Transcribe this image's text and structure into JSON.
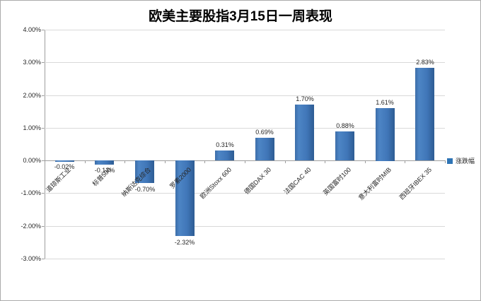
{
  "chart_data": {
    "type": "bar",
    "title": "欧美主要股指3月15日一周表现",
    "categories": [
      "道琼斯工业",
      "标普500",
      "纳斯达克综合",
      "罗素2000",
      "欧洲Stoxx 600",
      "德国DAX 30",
      "法国CAC 40",
      "英国富时100",
      "意大利富时MIB",
      "西班牙IBEX 35"
    ],
    "series": [
      {
        "name": "涨跌幅",
        "values": [
          -0.02,
          -0.13,
          -0.7,
          -2.32,
          0.31,
          0.69,
          1.7,
          0.88,
          1.61,
          2.83
        ]
      }
    ],
    "data_labels": [
      "-0.02%",
      "-0.13%",
      "-0.70%",
      "-2.32%",
      "0.31%",
      "0.69%",
      "1.70%",
      "0.88%",
      "1.61%",
      "2.83%"
    ],
    "xlabel": "",
    "ylabel": "",
    "y_axis": {
      "min": -3,
      "max": 4,
      "step": 1,
      "tick_labels": [
        "4.00%",
        "3.00%",
        "2.00%",
        "1.00%",
        "0.00%",
        "-1.00%",
        "-2.00%",
        "-3.00%"
      ]
    },
    "grid": true,
    "legend_position": "right",
    "colors": {
      "bar_dark": "#2d5c93",
      "bar_edge": "#3c6da8",
      "bar_light": "#4d85c5",
      "bar_main": "#4076b8",
      "legend_square": "#2e74b5",
      "gridline": "#d9d9d9",
      "axis_line": "#9e9e9e",
      "text": "#262626",
      "background": "#ffffff",
      "border": "#ababab"
    }
  }
}
